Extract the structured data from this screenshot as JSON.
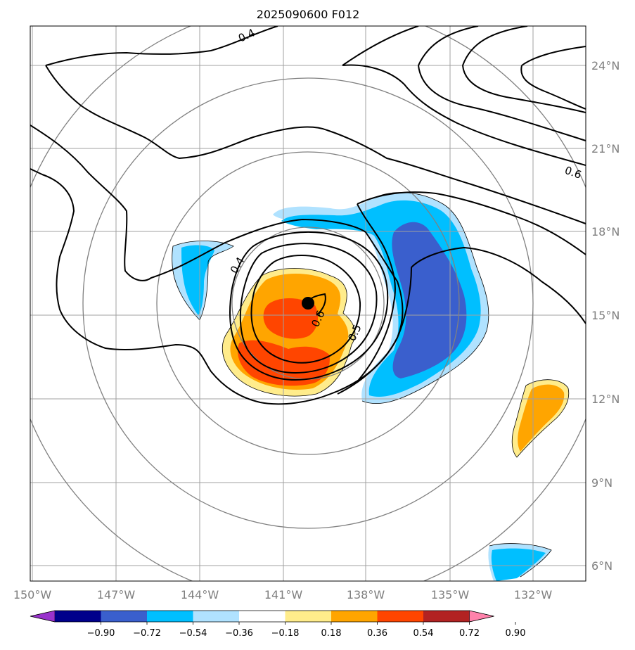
{
  "title": "2025090600 F012",
  "map": {
    "lat_labels": [
      "24°N",
      "21°N",
      "18°N",
      "15°N",
      "12°N",
      "9°N",
      "6°N"
    ],
    "lon_labels": [
      "150°W",
      "147°W",
      "144°W",
      "141°W",
      "138°W",
      "135°W",
      "132°W"
    ],
    "contour_labels": [
      "0.4",
      "0.6",
      "0.4",
      "0.6",
      "0.5"
    ],
    "storm_center": {
      "lat": 15.4,
      "lon": -140.2
    }
  },
  "colorbar": {
    "ticks": [
      "−0.90",
      "−0.72",
      "−0.54",
      "−0.36",
      "−0.18",
      "0.18",
      "0.36",
      "0.54",
      "0.72",
      "0.90"
    ],
    "colors": [
      "#9932cc",
      "#00008b",
      "#3a5fcd",
      "#00bfff",
      "#b0e2ff",
      "#ffffff",
      "#ffec8b",
      "#ffa500",
      "#ff4500",
      "#b22222",
      "#ff82ab"
    ]
  }
}
